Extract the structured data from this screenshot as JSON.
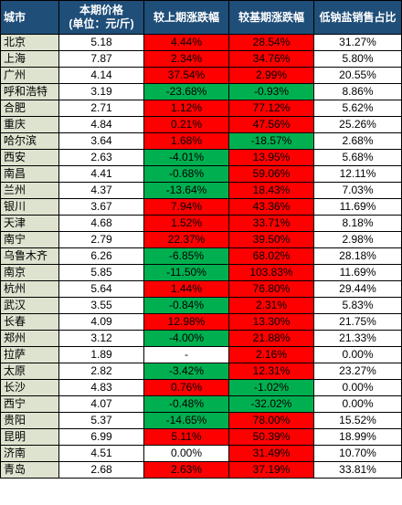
{
  "header": {
    "city": "城市",
    "price_line1": "本期价格",
    "price_line2": "(单位：元/斤)",
    "mom": "较上期涨跌幅",
    "yoy": "较基期涨跌幅",
    "share": "低钠盐销售占比"
  },
  "colors": {
    "header_bg": "#1f4e79",
    "city_bg": "#dde3cf",
    "up": "#ff0000",
    "down": "#00b050"
  },
  "rows": [
    {
      "city": "北京",
      "price": "5.18",
      "mom": "4.44%",
      "yoy": "28.54%",
      "share": "31.27%",
      "mom_c": "red",
      "yoy_c": "red"
    },
    {
      "city": "上海",
      "price": "7.87",
      "mom": "2.34%",
      "yoy": "34.76%",
      "share": "5.80%",
      "mom_c": "red",
      "yoy_c": "red"
    },
    {
      "city": "广州",
      "price": "4.14",
      "mom": "37.54%",
      "yoy": "2.99%",
      "share": "20.55%",
      "mom_c": "red",
      "yoy_c": "red"
    },
    {
      "city": "呼和浩特",
      "price": "3.19",
      "mom": "-23.68%",
      "yoy": "-0.93%",
      "share": "8.86%",
      "mom_c": "green",
      "yoy_c": "green"
    },
    {
      "city": "合肥",
      "price": "2.71",
      "mom": "1.12%",
      "yoy": "77.12%",
      "share": "5.62%",
      "mom_c": "red",
      "yoy_c": "red"
    },
    {
      "city": "重庆",
      "price": "4.84",
      "mom": "0.21%",
      "yoy": "47.56%",
      "share": "25.26%",
      "mom_c": "red",
      "yoy_c": "red"
    },
    {
      "city": "哈尔滨",
      "price": "3.64",
      "mom": "1.68%",
      "yoy": "-18.57%",
      "share": "2.68%",
      "mom_c": "red",
      "yoy_c": "green"
    },
    {
      "city": "西安",
      "price": "2.63",
      "mom": "-4.01%",
      "yoy": "13.95%",
      "share": "5.68%",
      "mom_c": "green",
      "yoy_c": "red"
    },
    {
      "city": "南昌",
      "price": "4.41",
      "mom": "-0.68%",
      "yoy": "59.06%",
      "share": "12.11%",
      "mom_c": "green",
      "yoy_c": "red"
    },
    {
      "city": "兰州",
      "price": "4.37",
      "mom": "-13.64%",
      "yoy": "18.43%",
      "share": "7.03%",
      "mom_c": "green",
      "yoy_c": "red"
    },
    {
      "city": "银川",
      "price": "3.67",
      "mom": "7.94%",
      "yoy": "43.36%",
      "share": "11.69%",
      "mom_c": "red",
      "yoy_c": "red"
    },
    {
      "city": "天津",
      "price": "4.68",
      "mom": "1.52%",
      "yoy": "33.71%",
      "share": "8.18%",
      "mom_c": "red",
      "yoy_c": "red"
    },
    {
      "city": "南宁",
      "price": "2.79",
      "mom": "22.37%",
      "yoy": "39.50%",
      "share": "2.98%",
      "mom_c": "red",
      "yoy_c": "red"
    },
    {
      "city": "乌鲁木齐",
      "price": "6.26",
      "mom": "-6.85%",
      "yoy": "68.02%",
      "share": "28.18%",
      "mom_c": "green",
      "yoy_c": "red"
    },
    {
      "city": "南京",
      "price": "5.85",
      "mom": "-11.50%",
      "yoy": "103.83%",
      "share": "11.69%",
      "mom_c": "green",
      "yoy_c": "red"
    },
    {
      "city": "杭州",
      "price": "5.64",
      "mom": "1.44%",
      "yoy": "76.80%",
      "share": "29.44%",
      "mom_c": "red",
      "yoy_c": "red"
    },
    {
      "city": "武汉",
      "price": "3.55",
      "mom": "-0.84%",
      "yoy": "2.31%",
      "share": "5.83%",
      "mom_c": "green",
      "yoy_c": "red"
    },
    {
      "city": "长春",
      "price": "4.09",
      "mom": "12.98%",
      "yoy": "13.30%",
      "share": "21.75%",
      "mom_c": "red",
      "yoy_c": "red"
    },
    {
      "city": "郑州",
      "price": "3.12",
      "mom": "-4.00%",
      "yoy": "21.88%",
      "share": "21.33%",
      "mom_c": "green",
      "yoy_c": "red"
    },
    {
      "city": "拉萨",
      "price": "1.89",
      "mom": "-",
      "yoy": "2.16%",
      "share": "0.00%",
      "mom_c": "white",
      "yoy_c": "red"
    },
    {
      "city": "太原",
      "price": "2.82",
      "mom": "-3.42%",
      "yoy": "12.31%",
      "share": "23.27%",
      "mom_c": "green",
      "yoy_c": "red"
    },
    {
      "city": "长沙",
      "price": "4.83",
      "mom": "0.76%",
      "yoy": "-1.02%",
      "share": "0.00%",
      "mom_c": "red",
      "yoy_c": "green"
    },
    {
      "city": "西宁",
      "price": "4.07",
      "mom": "-0.48%",
      "yoy": "-32.02%",
      "share": "0.00%",
      "mom_c": "green",
      "yoy_c": "green"
    },
    {
      "city": "贵阳",
      "price": "5.37",
      "mom": "-14.65%",
      "yoy": "78.00%",
      "share": "15.52%",
      "mom_c": "green",
      "yoy_c": "red"
    },
    {
      "city": "昆明",
      "price": "6.99",
      "mom": "5.11%",
      "yoy": "50.39%",
      "share": "18.99%",
      "mom_c": "red",
      "yoy_c": "red"
    },
    {
      "city": "济南",
      "price": "4.51",
      "mom": "0.00%",
      "yoy": "31.49%",
      "share": "10.70%",
      "mom_c": "white",
      "yoy_c": "red"
    },
    {
      "city": "青岛",
      "price": "2.68",
      "mom": "2.63%",
      "yoy": "37.19%",
      "share": "33.81%",
      "mom_c": "red",
      "yoy_c": "red"
    }
  ]
}
